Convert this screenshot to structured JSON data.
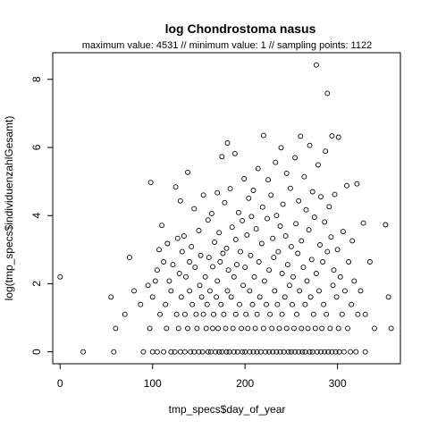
{
  "chart_data": {
    "type": "scatter",
    "title": "log Chondrostoma nasus",
    "subtitle": "maximum value: 4531  //  minimum value: 1  // sampling points: 1122",
    "xlabel": "tmp_specs$day_of_year",
    "ylabel": "log(tmp_specs$individuenzahlGesamt)",
    "xlim": [
      -8,
      368
    ],
    "ylim": [
      -0.35,
      8.78
    ],
    "xticks": [
      0,
      100,
      200,
      300
    ],
    "yticks": [
      0,
      2,
      4,
      6,
      8
    ],
    "grid": false,
    "marker": "open-circle",
    "x_range": [
      0,
      358
    ],
    "y_range": [
      0,
      8.42
    ],
    "points_estimated": "approximate subsample read from the figure",
    "points": [
      [
        0,
        2.2
      ],
      [
        25,
        0
      ],
      [
        55,
        1.61
      ],
      [
        58,
        0
      ],
      [
        60,
        0.69
      ],
      [
        70,
        1.1
      ],
      [
        75,
        2.77
      ],
      [
        80,
        1.79
      ],
      [
        87,
        1.39
      ],
      [
        90,
        0
      ],
      [
        95,
        1.95
      ],
      [
        97,
        0.69
      ],
      [
        98,
        4.97
      ],
      [
        100,
        0
      ],
      [
        100,
        1.61
      ],
      [
        103,
        2.08
      ],
      [
        105,
        0
      ],
      [
        105,
        2.4
      ],
      [
        107,
        3.0
      ],
      [
        108,
        1.1
      ],
      [
        110,
        3.71
      ],
      [
        112,
        0
      ],
      [
        112,
        2.64
      ],
      [
        114,
        1.39
      ],
      [
        115,
        0.69
      ],
      [
        116,
        3.18
      ],
      [
        118,
        2.08
      ],
      [
        120,
        0
      ],
      [
        120,
        1.79
      ],
      [
        122,
        2.56
      ],
      [
        124,
        0
      ],
      [
        125,
        4.84
      ],
      [
        126,
        1.1
      ],
      [
        127,
        3.33
      ],
      [
        128,
        0.69
      ],
      [
        129,
        2.3
      ],
      [
        130,
        4.43
      ],
      [
        130,
        0
      ],
      [
        131,
        1.61
      ],
      [
        132,
        2.94
      ],
      [
        134,
        3.4
      ],
      [
        135,
        0
      ],
      [
        135,
        1.1
      ],
      [
        136,
        2.2
      ],
      [
        138,
        0.69
      ],
      [
        138,
        5.27
      ],
      [
        140,
        1.79
      ],
      [
        140,
        2.64
      ],
      [
        141,
        0
      ],
      [
        142,
        3.09
      ],
      [
        143,
        1.39
      ],
      [
        145,
        4.2
      ],
      [
        145,
        0
      ],
      [
        146,
        2.48
      ],
      [
        147,
        1.1
      ],
      [
        148,
        0.69
      ],
      [
        150,
        0
      ],
      [
        150,
        3.56
      ],
      [
        151,
        1.95
      ],
      [
        152,
        2.83
      ],
      [
        153,
        1.61
      ],
      [
        154,
        0
      ],
      [
        155,
        1.1
      ],
      [
        155,
        4.6
      ],
      [
        157,
        2.2
      ],
      [
        158,
        0.69
      ],
      [
        159,
        1.39
      ],
      [
        160,
        0
      ],
      [
        160,
        3.87
      ],
      [
        161,
        2.77
      ],
      [
        162,
        1.79
      ],
      [
        163,
        0
      ],
      [
        164,
        4.06
      ],
      [
        165,
        2.5
      ],
      [
        165,
        0.69
      ],
      [
        166,
        1.1
      ],
      [
        167,
        3.22
      ],
      [
        168,
        0
      ],
      [
        169,
        1.61
      ],
      [
        170,
        2.08
      ],
      [
        170,
        4.67
      ],
      [
        171,
        0.69
      ],
      [
        172,
        0
      ],
      [
        172,
        3.5
      ],
      [
        173,
        2.64
      ],
      [
        174,
        1.39
      ],
      [
        175,
        5.73
      ],
      [
        175,
        0
      ],
      [
        176,
        2.89
      ],
      [
        177,
        1.1
      ],
      [
        178,
        4.38
      ],
      [
        179,
        0.69
      ],
      [
        180,
        0
      ],
      [
        180,
        3.04
      ],
      [
        181,
        6.13
      ],
      [
        181,
        1.79
      ],
      [
        182,
        2.4
      ],
      [
        183,
        0
      ],
      [
        184,
        4.79
      ],
      [
        185,
        1.61
      ],
      [
        186,
        3.66
      ],
      [
        187,
        0.69
      ],
      [
        188,
        2.2
      ],
      [
        188,
        0
      ],
      [
        189,
        5.82
      ],
      [
        190,
        1.1
      ],
      [
        190,
        3.3
      ],
      [
        191,
        2.56
      ],
      [
        192,
        0
      ],
      [
        193,
        4.09
      ],
      [
        194,
        1.39
      ],
      [
        195,
        2.94
      ],
      [
        196,
        0.69
      ],
      [
        197,
        0
      ],
      [
        197,
        3.85
      ],
      [
        198,
        1.95
      ],
      [
        199,
        5.08
      ],
      [
        200,
        0
      ],
      [
        200,
        2.48
      ],
      [
        201,
        1.1
      ],
      [
        202,
        3.43
      ],
      [
        203,
        0.69
      ],
      [
        204,
        4.51
      ],
      [
        205,
        0
      ],
      [
        205,
        1.79
      ],
      [
        206,
        2.83
      ],
      [
        207,
        3.97
      ],
      [
        208,
        1.39
      ],
      [
        209,
        0
      ],
      [
        209,
        4.74
      ],
      [
        210,
        2.2
      ],
      [
        211,
        0.69
      ],
      [
        212,
        3.61
      ],
      [
        213,
        1.1
      ],
      [
        213,
        0
      ],
      [
        214,
        5.38
      ],
      [
        215,
        2.64
      ],
      [
        216,
        1.61
      ],
      [
        217,
        0
      ],
      [
        218,
        3.18
      ],
      [
        219,
        4.25
      ],
      [
        220,
        0.69
      ],
      [
        220,
        6.35
      ],
      [
        221,
        2.08
      ],
      [
        222,
        0
      ],
      [
        223,
        1.39
      ],
      [
        224,
        3.91
      ],
      [
        225,
        5.05
      ],
      [
        226,
        2.4
      ],
      [
        226,
        0
      ],
      [
        227,
        1.1
      ],
      [
        228,
        4.6
      ],
      [
        229,
        0.69
      ],
      [
        230,
        3.33
      ],
      [
        230,
        0
      ],
      [
        231,
        2.77
      ],
      [
        232,
        1.79
      ],
      [
        233,
        5.56
      ],
      [
        234,
        0
      ],
      [
        234,
        4.0
      ],
      [
        235,
        1.39
      ],
      [
        236,
        2.94
      ],
      [
        237,
        0.69
      ],
      [
        238,
        3.69
      ],
      [
        238,
        0
      ],
      [
        239,
        5.99
      ],
      [
        240,
        1.1
      ],
      [
        240,
        2.3
      ],
      [
        241,
        4.33
      ],
      [
        242,
        0
      ],
      [
        243,
        1.61
      ],
      [
        244,
        3.4
      ],
      [
        245,
        0.69
      ],
      [
        245,
        5.24
      ],
      [
        246,
        2.56
      ],
      [
        247,
        0
      ],
      [
        248,
        1.95
      ],
      [
        249,
        4.8
      ],
      [
        250,
        0
      ],
      [
        250,
        3.09
      ],
      [
        251,
        1.39
      ],
      [
        252,
        2.2
      ],
      [
        253,
        0.69
      ],
      [
        254,
        5.7
      ],
      [
        254,
        0
      ],
      [
        255,
        3.76
      ],
      [
        256,
        1.1
      ],
      [
        257,
        2.89
      ],
      [
        258,
        4.43
      ],
      [
        258,
        0
      ],
      [
        259,
        1.79
      ],
      [
        260,
        6.33
      ],
      [
        261,
        0.69
      ],
      [
        261,
        3.26
      ],
      [
        262,
        0
      ],
      [
        263,
        2.48
      ],
      [
        264,
        5.14
      ],
      [
        265,
        1.39
      ],
      [
        265,
        0
      ],
      [
        266,
        4.17
      ],
      [
        267,
        2.08
      ],
      [
        268,
        0.69
      ],
      [
        269,
        3.58
      ],
      [
        270,
        0
      ],
      [
        270,
        6.06
      ],
      [
        271,
        1.61
      ],
      [
        272,
        2.71
      ],
      [
        273,
        4.7
      ],
      [
        273,
        0
      ],
      [
        274,
        1.1
      ],
      [
        275,
        3.95
      ],
      [
        276,
        0.69
      ],
      [
        277,
        8.42
      ],
      [
        277,
        2.3
      ],
      [
        278,
        0
      ],
      [
        279,
        5.49
      ],
      [
        280,
        1.79
      ],
      [
        281,
        3.14
      ],
      [
        282,
        0
      ],
      [
        282,
        4.55
      ],
      [
        283,
        0.69
      ],
      [
        284,
        2.64
      ],
      [
        285,
        1.39
      ],
      [
        286,
        3.81
      ],
      [
        286,
        0
      ],
      [
        287,
        5.89
      ],
      [
        288,
        1.1
      ],
      [
        289,
        7.59
      ],
      [
        289,
        2.94
      ],
      [
        290,
        0
      ],
      [
        291,
        4.26
      ],
      [
        292,
        0.69
      ],
      [
        293,
        3.37
      ],
      [
        294,
        6.34
      ],
      [
        294,
        0
      ],
      [
        295,
        1.95
      ],
      [
        296,
        2.4
      ],
      [
        297,
        4.62
      ],
      [
        298,
        0
      ],
      [
        299,
        1.61
      ],
      [
        300,
        3.0
      ],
      [
        301,
        0.69
      ],
      [
        301,
        6.3
      ],
      [
        302,
        0
      ],
      [
        303,
        2.2
      ],
      [
        305,
        1.1
      ],
      [
        306,
        3.53
      ],
      [
        307,
        0
      ],
      [
        308,
        1.79
      ],
      [
        310,
        4.88
      ],
      [
        311,
        0.69
      ],
      [
        312,
        2.64
      ],
      [
        314,
        0
      ],
      [
        315,
        1.39
      ],
      [
        316,
        3.26
      ],
      [
        318,
        2.08
      ],
      [
        320,
        0
      ],
      [
        321,
        4.93
      ],
      [
        322,
        1.1
      ],
      [
        325,
        1.79
      ],
      [
        328,
        3.78
      ],
      [
        330,
        1.1
      ],
      [
        330,
        0
      ],
      [
        335,
        2.64
      ],
      [
        340,
        0.69
      ],
      [
        352,
        3.73
      ],
      [
        355,
        1.61
      ],
      [
        358,
        0.69
      ]
    ]
  }
}
